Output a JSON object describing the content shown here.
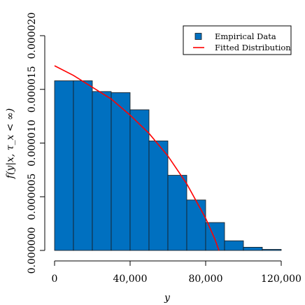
{
  "chart_data": {
    "type": "bar",
    "title": "",
    "xlabel": "y",
    "ylabel": "f(y|x, τ_x < ∞)",
    "xlim": [
      0,
      120000
    ],
    "ylim": [
      0,
      2e-05
    ],
    "x_ticks": [
      0,
      40000,
      80000,
      120000
    ],
    "x_tick_labels": [
      "0",
      "40,000",
      "80,000",
      "120,000"
    ],
    "y_ticks": [
      0,
      5e-06,
      1e-05,
      1.5e-05,
      2e-05
    ],
    "y_tick_labels": [
      "0.000000",
      "0.000005",
      "0.000010",
      "0.000015",
      "0.000020"
    ],
    "bin_width": 10000,
    "bins": [
      0,
      10000,
      20000,
      30000,
      40000,
      50000,
      60000,
      70000,
      80000,
      90000,
      100000,
      110000
    ],
    "values": [
      1.58e-05,
      1.58e-05,
      1.48e-05,
      1.47e-05,
      1.31e-05,
      1.02e-05,
      7e-06,
      4.7e-06,
      2.6e-06,
      9e-07,
      3e-07,
      1e-07
    ],
    "fitted_curve": {
      "x": [
        0,
        10000,
        20000,
        30000,
        40000,
        50000,
        60000,
        70000,
        80000,
        85000,
        87000
      ],
      "y": [
        1.72e-05,
        1.63e-05,
        1.52e-05,
        1.41e-05,
        1.26e-05,
        1.09e-05,
        8.8e-06,
        6.2e-06,
        3e-06,
        1e-06,
        0.0
      ]
    },
    "legend": {
      "position": "top-right",
      "items": [
        {
          "label": "Empirical Data",
          "type": "box",
          "color": "#0070C0"
        },
        {
          "label": "Fitted Distribution",
          "type": "line",
          "color": "#FF0000"
        }
      ]
    },
    "colors": {
      "bar_fill": "#0070C0",
      "bar_stroke": "#1a1a1a",
      "curve": "#FF0000",
      "axis": "#000000"
    },
    "grid": false
  }
}
